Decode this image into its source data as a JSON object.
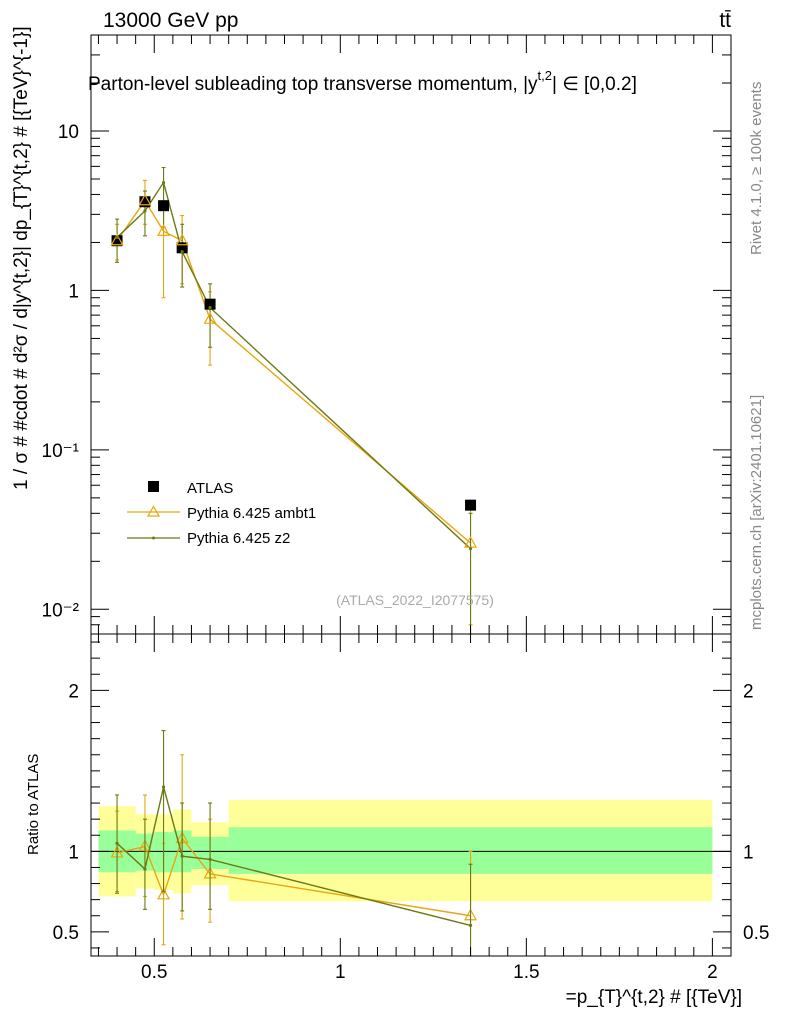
{
  "header": {
    "energy_label": "13000 GeV pp",
    "process_label": "tt̄",
    "title": "Parton-level subleading top transverse momentum, |y",
    "title_sup": "t,2",
    "title_tail": "| ∈ [0,0.2]"
  },
  "side": {
    "rivet_label": "Rivet 4.1.0, ≥ 100k events",
    "mcplots_label": "mcplots.cern.ch [arXiv:2401.10621]"
  },
  "watermark": "(ATLAS_2022_I2077575)",
  "legend": {
    "entries": [
      {
        "label": "ATLAS",
        "marker": "square",
        "color": "#000000"
      },
      {
        "label": "Pythia 6.425 ambt1",
        "marker": "triangle",
        "color": "#e8a60f"
      },
      {
        "label": "Pythia 6.425 z2",
        "marker": "dot",
        "color": "#6b7a12"
      }
    ]
  },
  "colors": {
    "ambt1": "#e8a60f",
    "z2": "#6b7a12",
    "band_inner": "#99ff99",
    "band_outer": "#ffff99"
  },
  "chart_data": [
    {
      "type": "scatter",
      "panel": "main",
      "ylabel": "1 / σ # #cdot # d²σ / d|y^{t,2}| dp_{T}^{t,2} # [{TeV}^{-1}]",
      "yscale": "log",
      "ylim": [
        0.007,
        40
      ],
      "xlim": [
        0.33,
        2.05
      ],
      "y_tick_labels": [
        "10⁻²",
        "10⁻¹",
        "1",
        "10"
      ],
      "series": [
        {
          "name": "ATLAS",
          "x": [
            0.4,
            0.475,
            0.525,
            0.575,
            0.65,
            1.35
          ],
          "y": [
            2.05,
            3.6,
            3.4,
            1.85,
            0.82,
            0.045
          ],
          "yerr": [
            0.1,
            0.15,
            0.15,
            0.1,
            0.05,
            0.003
          ]
        },
        {
          "name": "Pythia 6.425 ambt1",
          "x": [
            0.4,
            0.475,
            0.525,
            0.575,
            0.65,
            1.35
          ],
          "y": [
            2.05,
            3.65,
            2.35,
            2.05,
            0.66,
            0.026
          ],
          "ylow": [
            1.55,
            2.6,
            0.9,
            1.1,
            0.34,
            0.008
          ],
          "yhigh": [
            2.6,
            4.9,
            3.5,
            2.95,
            0.98,
            0.045
          ]
        },
        {
          "name": "Pythia 6.425 z2",
          "x": [
            0.4,
            0.475,
            0.525,
            0.575,
            0.65,
            1.35
          ],
          "y": [
            2.15,
            3.15,
            4.75,
            1.75,
            0.78,
            0.024
          ],
          "ylow": [
            1.5,
            2.2,
            2.5,
            1.05,
            0.44,
            0.007
          ],
          "yhigh": [
            2.8,
            4.2,
            5.9,
            2.6,
            1.1,
            0.04
          ]
        }
      ]
    },
    {
      "type": "line",
      "panel": "ratio",
      "ylabel": "Ratio to ATLAS",
      "xlabel": "=p_{T}^{t,2} # [{TeV}]",
      "ylim": [
        0.35,
        2.35
      ],
      "xlim": [
        0.33,
        2.05
      ],
      "x_tick_labels": [
        "0.5",
        "1",
        "1.5",
        "2"
      ],
      "y_tick_labels": [
        "0.5",
        "1",
        "2"
      ],
      "bands": [
        {
          "x0": 0.35,
          "x1": 0.45,
          "inner": [
            0.87,
            1.13
          ],
          "outer": [
            0.72,
            1.28
          ]
        },
        {
          "x0": 0.45,
          "x1": 0.5,
          "inner": [
            0.88,
            1.11
          ],
          "outer": [
            0.77,
            1.23
          ]
        },
        {
          "x0": 0.5,
          "x1": 0.55,
          "inner": [
            0.87,
            1.12
          ],
          "outer": [
            0.76,
            1.23
          ]
        },
        {
          "x0": 0.55,
          "x1": 0.6,
          "inner": [
            0.87,
            1.13
          ],
          "outer": [
            0.74,
            1.26
          ]
        },
        {
          "x0": 0.6,
          "x1": 0.7,
          "inner": [
            0.89,
            1.09
          ],
          "outer": [
            0.79,
            1.18
          ]
        },
        {
          "x0": 0.7,
          "x1": 2.0,
          "inner": [
            0.86,
            1.15
          ],
          "outer": [
            0.69,
            1.32
          ]
        }
      ],
      "series": [
        {
          "name": "Pythia 6.425 ambt1",
          "x": [
            0.4,
            0.475,
            0.525,
            0.575,
            0.65,
            1.35
          ],
          "y": [
            0.99,
            1.03,
            0.73,
            1.08,
            0.86,
            0.6
          ],
          "ylow": [
            0.75,
            0.72,
            0.42,
            0.58,
            0.56,
            0.3
          ],
          "yhigh": [
            1.25,
            1.35,
            1.05,
            1.6,
            1.2,
            1.0
          ]
        },
        {
          "name": "Pythia 6.425 z2",
          "x": [
            0.4,
            0.475,
            0.525,
            0.575,
            0.65,
            1.35
          ],
          "y": [
            1.05,
            0.89,
            1.4,
            0.97,
            0.95,
            0.54
          ],
          "ylow": [
            0.74,
            0.64,
            0.75,
            0.63,
            0.64,
            0.3
          ],
          "yhigh": [
            1.35,
            1.2,
            1.75,
            1.3,
            1.3,
            0.92
          ]
        }
      ]
    }
  ]
}
